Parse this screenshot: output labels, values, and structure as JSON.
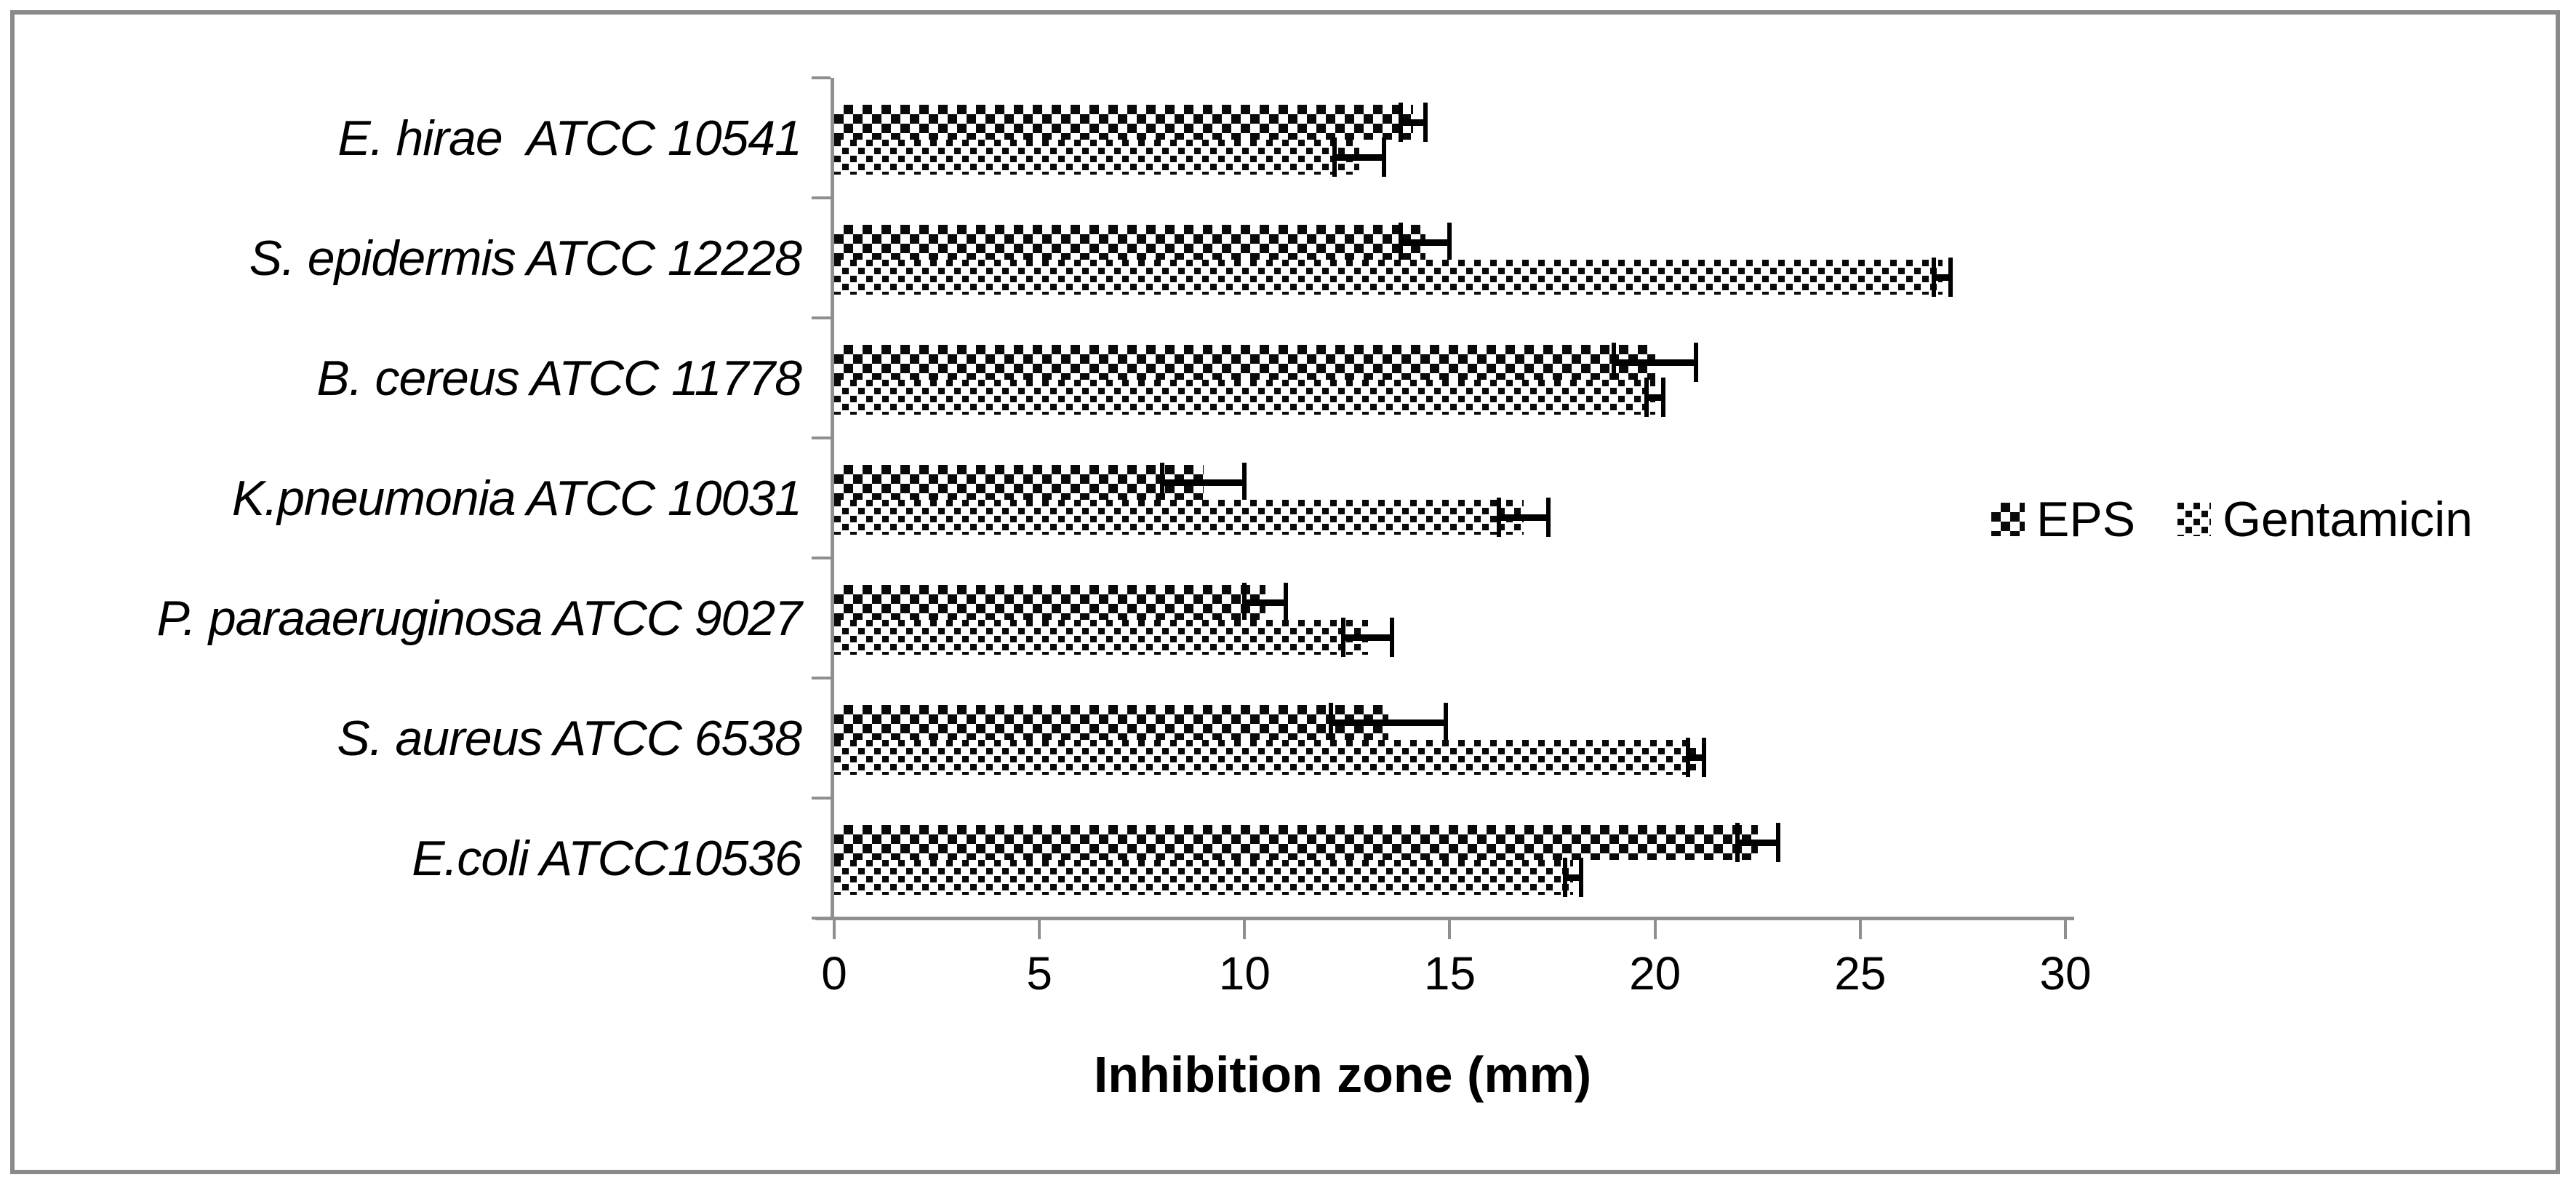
{
  "chart_data": {
    "type": "bar",
    "orientation": "horizontal",
    "title": "",
    "xlabel": "Inhibition zone (mm)",
    "x_ticks": [
      0,
      5,
      10,
      15,
      20,
      25,
      30
    ],
    "xlim": [
      0,
      30
    ],
    "grid": false,
    "legend_position": "right-middle",
    "categories": [
      "E. hirae  ATCC 10541",
      "S. epidermis ATCC 12228",
      "B. cereus ATCC 11778",
      "K.pneumonia ATCC 10031",
      "P. paraaeruginosa ATCC 9027",
      "S. aureus ATCC 6538",
      "E.coli ATCC10536"
    ],
    "series": [
      {
        "name": "EPS",
        "pattern": "checker",
        "values": [
          14.1,
          14.4,
          20.0,
          9.0,
          10.5,
          13.5,
          22.5
        ],
        "errors": [
          0.3,
          0.6,
          1.0,
          1.0,
          0.5,
          1.4,
          0.5
        ]
      },
      {
        "name": "Gentamicin",
        "pattern": "dots",
        "values": [
          12.8,
          27.0,
          20.0,
          16.8,
          13.0,
          21.0,
          18.0
        ],
        "errors": [
          0.6,
          0.2,
          0.2,
          0.6,
          0.6,
          0.2,
          0.2
        ]
      }
    ],
    "colors": {
      "bar_fill": "#000000",
      "background": "#ffffff",
      "axis": "#8f8f8f",
      "frame_border": "#8a8a8a",
      "error_bar": "#000000"
    }
  }
}
